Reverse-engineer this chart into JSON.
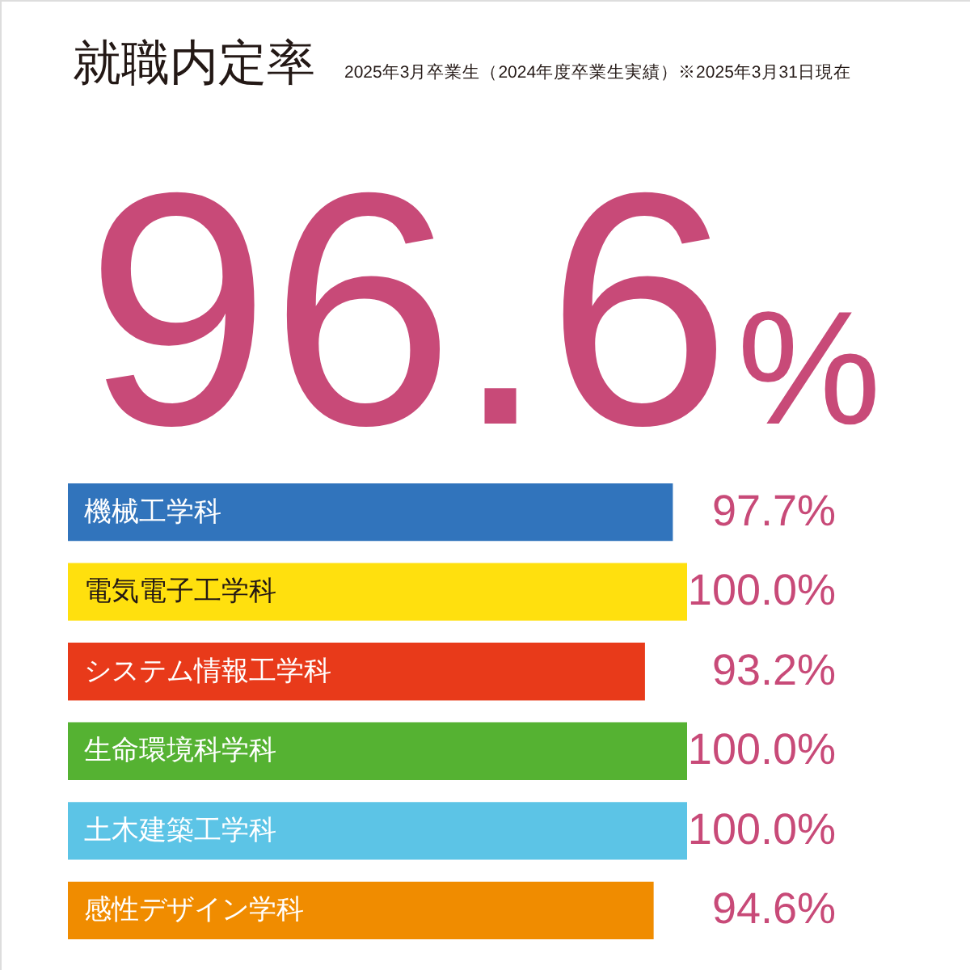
{
  "chart_data": {
    "type": "bar",
    "orientation": "horizontal",
    "title": "就職内定率",
    "subtitle": "2025年3月卒業生（2024年度卒業生実績）※2025年3月31日現在",
    "annotations": [
      "96.6%"
    ],
    "categories": [
      "機械工学科",
      "電気電子工学科",
      "システム情報工学科",
      "生命環境科学科",
      "土木建築工学科",
      "感性デザイン学科"
    ],
    "values": [
      97.7,
      100.0,
      93.2,
      100.0,
      100.0,
      94.6
    ],
    "colors": [
      "#3174bc",
      "#ffe00e",
      "#e83a1a",
      "#55b232",
      "#5cc4e6",
      "#f08c00"
    ],
    "value_labels": [
      "97.7%",
      "100.0%",
      "93.2%",
      "100.0%",
      "100.0%",
      "94.6%"
    ],
    "tick_labels": "y"
  }
}
